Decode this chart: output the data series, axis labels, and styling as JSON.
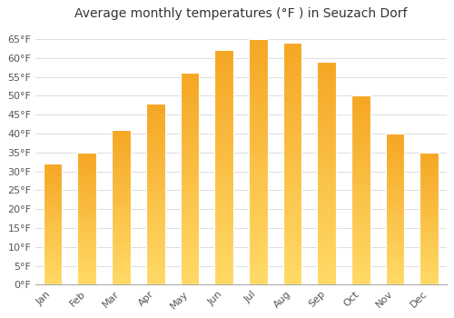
{
  "title": "Average monthly temperatures (°F ) in Seuzach Dorf",
  "months": [
    "Jan",
    "Feb",
    "Mar",
    "Apr",
    "May",
    "Jun",
    "Jul",
    "Aug",
    "Sep",
    "Oct",
    "Nov",
    "Dec"
  ],
  "values": [
    32,
    35,
    41,
    48,
    56,
    62,
    65,
    64,
    59,
    50,
    40,
    35
  ],
  "bar_color_top": "#F5A623",
  "bar_color_bottom": "#FFD966",
  "background_color": "#FFFFFF",
  "plot_bg_color": "#FFFFFF",
  "yticks": [
    0,
    5,
    10,
    15,
    20,
    25,
    30,
    35,
    40,
    45,
    50,
    55,
    60,
    65
  ],
  "ytick_labels": [
    "0°F",
    "5°F",
    "10°F",
    "15°F",
    "20°F",
    "25°F",
    "30°F",
    "35°F",
    "40°F",
    "45°F",
    "50°F",
    "55°F",
    "60°F",
    "65°F"
  ],
  "ylim": [
    0,
    68
  ],
  "title_fontsize": 10,
  "tick_fontsize": 8,
  "grid_color": "#DDDDDD",
  "bar_width": 0.55
}
